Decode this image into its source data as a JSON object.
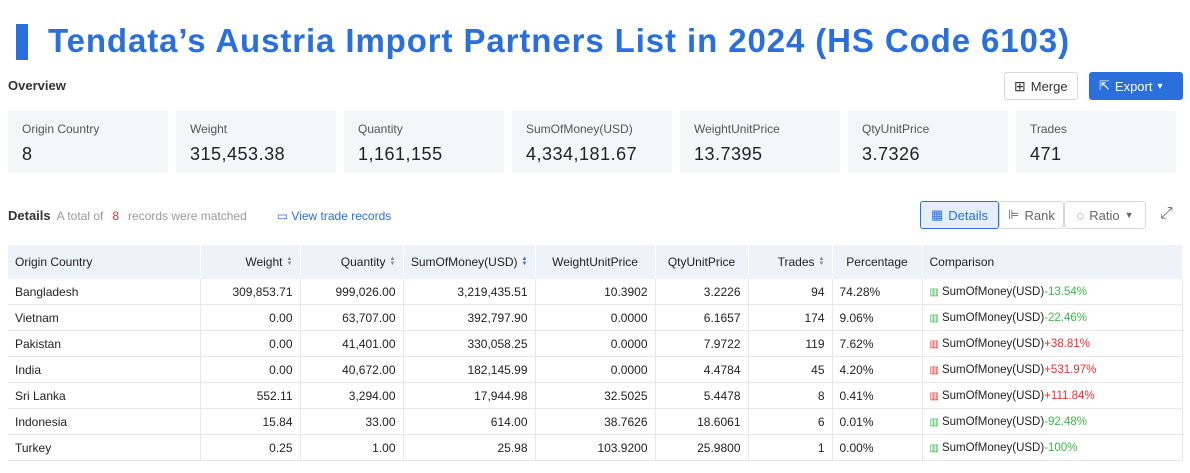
{
  "header": {
    "title": "Tendata’s Austria Import Partners List in 2024 (HS Code 6103)"
  },
  "overview": {
    "label": "Overview",
    "merge": "Merge",
    "export": "Export",
    "stats": [
      {
        "label": "Origin Country",
        "value": "8"
      },
      {
        "label": "Weight",
        "value": "315,453.38"
      },
      {
        "label": "Quantity",
        "value": "1,161,155"
      },
      {
        "label": "SumOfMoney(USD)",
        "value": "4,334,181.67"
      },
      {
        "label": "WeightUnitPrice",
        "value": "13.7395"
      },
      {
        "label": "QtyUnitPrice",
        "value": "3.7326"
      },
      {
        "label": "Trades",
        "value": "471"
      }
    ]
  },
  "details": {
    "label": "Details",
    "prefix": "A total of",
    "count": "8",
    "suffix": "records were matched",
    "link": "View trade records",
    "tabs": [
      "Details",
      "Rank",
      "Ratio"
    ]
  },
  "table": {
    "columns": [
      "Origin Country",
      "Weight",
      "Quantity",
      "SumOfMoney(USD)",
      "WeightUnitPrice",
      "QtyUnitPrice",
      "Trades",
      "Percentage",
      "Comparison"
    ],
    "rows": [
      [
        "Bangladesh",
        "309,853.71",
        "999,026.00",
        "3,219,435.51",
        "10.3902",
        "3.2226",
        "94",
        "74.28%",
        {
          "label": "SumOfMoney(USD)",
          "change": "-13.54%",
          "color": "#3bb84a"
        }
      ],
      [
        "Vietnam",
        "0.00",
        "63,707.00",
        "392,797.90",
        "0.0000",
        "6.1657",
        "174",
        "9.06%",
        {
          "label": "SumOfMoney(USD)",
          "change": "-22.46%",
          "color": "#3bb84a"
        }
      ],
      [
        "Pakistan",
        "0.00",
        "41,401.00",
        "330,058.25",
        "0.0000",
        "7.9722",
        "119",
        "7.62%",
        {
          "label": "SumOfMoney(USD)",
          "change": "+38.81%",
          "color": "#e8312f"
        }
      ],
      [
        "India",
        "0.00",
        "40,672.00",
        "182,145.99",
        "0.0000",
        "4.4784",
        "45",
        "4.20%",
        {
          "label": "SumOfMoney(USD)",
          "change": "+531.97%",
          "color": "#e8312f"
        }
      ],
      [
        "Sri Lanka",
        "552.11",
        "3,294.00",
        "17,944.98",
        "32.5025",
        "5.4478",
        "8",
        "0.41%",
        {
          "label": "SumOfMoney(USD)",
          "change": "+111.84%",
          "color": "#e8312f"
        }
      ],
      [
        "Indonesia",
        "15.84",
        "33.00",
        "614.00",
        "38.7626",
        "18.6061",
        "6",
        "0.01%",
        {
          "label": "SumOfMoney(USD)",
          "change": "-92.48%",
          "color": "#3bb84a"
        }
      ],
      [
        "Turkey",
        "0.25",
        "1.00",
        "25.98",
        "103.9200",
        "25.9800",
        "1",
        "0.00%",
        {
          "label": "SumOfMoney(USD)",
          "change": "-100%",
          "color": "#3bb84a"
        }
      ]
    ]
  }
}
